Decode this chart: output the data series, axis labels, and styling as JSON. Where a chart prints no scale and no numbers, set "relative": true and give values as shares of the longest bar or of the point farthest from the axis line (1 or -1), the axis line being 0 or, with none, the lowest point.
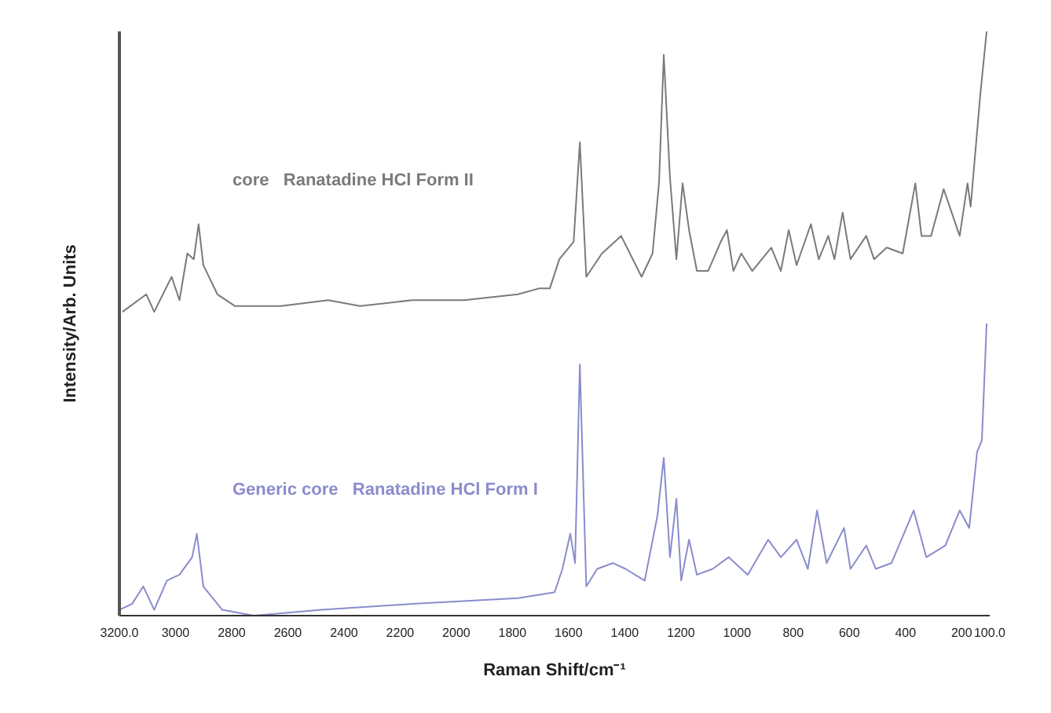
{
  "chart_data": {
    "type": "line",
    "relative": true,
    "xlabel": "Raman Shift/cm⁻¹",
    "ylabel": "Intensity/Arb. Units",
    "xlim": [
      3200,
      100
    ],
    "xticks": [
      {
        "value": 3200,
        "label": "3200.0"
      },
      3000,
      2800,
      2600,
      2400,
      2200,
      2000,
      1800,
      1600,
      1400,
      1200,
      1000,
      800,
      600,
      400,
      200,
      {
        "value": 100,
        "label": "100.0"
      }
    ],
    "marker": "none",
    "line_style": "solid",
    "series": [
      {
        "name": "core   Ranatadine HCl Form II",
        "color": "#7a7a7a",
        "x": [
          3189,
          3104,
          3076,
          3014,
          2986,
          2958,
          2935,
          2918,
          2901,
          2851,
          2789,
          2625,
          2456,
          2343,
          2157,
          1971,
          1780,
          1706,
          1667,
          1633,
          1582,
          1560,
          1537,
          1481,
          1413,
          1340,
          1301,
          1278,
          1261,
          1239,
          1216,
          1194,
          1171,
          1143,
          1103,
          1058,
          1036,
          1013,
          985,
          946,
          878,
          844,
          816,
          788,
          737,
          709,
          675,
          653,
          624,
          596,
          540,
          512,
          467,
          410,
          365,
          343,
          309,
          264,
          207,
          179,
          168,
          134,
          111
        ],
        "values": [
          0.52,
          0.55,
          0.52,
          0.58,
          0.54,
          0.62,
          0.61,
          0.67,
          0.6,
          0.55,
          0.53,
          0.53,
          0.54,
          0.53,
          0.54,
          0.54,
          0.55,
          0.56,
          0.56,
          0.61,
          0.64,
          0.81,
          0.58,
          0.62,
          0.65,
          0.58,
          0.62,
          0.74,
          0.96,
          0.75,
          0.61,
          0.74,
          0.66,
          0.59,
          0.59,
          0.64,
          0.66,
          0.59,
          0.62,
          0.59,
          0.63,
          0.59,
          0.66,
          0.6,
          0.67,
          0.61,
          0.65,
          0.61,
          0.69,
          0.61,
          0.65,
          0.61,
          0.63,
          0.62,
          0.74,
          0.65,
          0.65,
          0.73,
          0.65,
          0.74,
          0.7,
          0.89,
          1.0
        ]
      },
      {
        "name": "Generic core   Ranatadine HCl Form I",
        "color": "#8a8ccc",
        "x": [
          3200,
          3155,
          3115,
          3076,
          3031,
          2986,
          2941,
          2924,
          2901,
          2834,
          2721,
          2479,
          2157,
          1780,
          1650,
          1622,
          1594,
          1577,
          1560,
          1537,
          1498,
          1442,
          1397,
          1329,
          1284,
          1261,
          1239,
          1216,
          1199,
          1171,
          1143,
          1087,
          1030,
          962,
          889,
          844,
          788,
          748,
          715,
          681,
          619,
          596,
          540,
          506,
          450,
          371,
          326,
          258,
          207,
          173,
          145,
          128,
          111
        ],
        "values": [
          0.01,
          0.02,
          0.05,
          0.01,
          0.06,
          0.07,
          0.1,
          0.14,
          0.05,
          0.01,
          0.0,
          0.01,
          0.02,
          0.03,
          0.04,
          0.08,
          0.14,
          0.09,
          0.43,
          0.05,
          0.08,
          0.09,
          0.08,
          0.06,
          0.17,
          0.27,
          0.1,
          0.2,
          0.06,
          0.13,
          0.07,
          0.08,
          0.1,
          0.07,
          0.13,
          0.1,
          0.13,
          0.08,
          0.18,
          0.09,
          0.15,
          0.08,
          0.12,
          0.08,
          0.09,
          0.18,
          0.1,
          0.12,
          0.18,
          0.15,
          0.28,
          0.3,
          0.5
        ]
      }
    ]
  }
}
